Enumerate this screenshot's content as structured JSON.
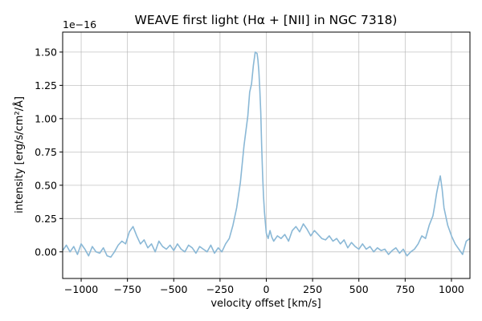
{
  "chart_data": {
    "type": "line",
    "title": "WEAVE first light (Hα + [NII] in NGC 7318)",
    "xlabel": "velocity offset [km/s]",
    "ylabel": "intensity [erg/s/cm²/Å]",
    "y_offset_label": "1e−16",
    "xlim": [
      -1100,
      1100
    ],
    "ylim": [
      -0.2,
      1.65
    ],
    "x_ticks": [
      -1000,
      -750,
      -500,
      -250,
      0,
      250,
      500,
      750,
      1000
    ],
    "x_tick_labels": [
      "−1000",
      "−750",
      "−500",
      "−250",
      "0",
      "250",
      "500",
      "750",
      "1000"
    ],
    "y_ticks": [
      0.0,
      0.25,
      0.5,
      0.75,
      1.0,
      1.25,
      1.5
    ],
    "y_tick_labels": [
      "0.00",
      "0.25",
      "0.50",
      "0.75",
      "1.00",
      "1.25",
      "1.50"
    ],
    "grid": true,
    "series": [
      {
        "color": "#8ab8d6",
        "x": [
          -1100,
          -1080,
          -1060,
          -1040,
          -1020,
          -1000,
          -980,
          -960,
          -940,
          -920,
          -900,
          -880,
          -860,
          -840,
          -820,
          -800,
          -780,
          -760,
          -740,
          -720,
          -700,
          -680,
          -660,
          -640,
          -620,
          -600,
          -580,
          -560,
          -540,
          -520,
          -500,
          -480,
          -460,
          -440,
          -420,
          -400,
          -380,
          -360,
          -340,
          -320,
          -300,
          -280,
          -260,
          -240,
          -220,
          -200,
          -180,
          -160,
          -140,
          -120,
          -100,
          -90,
          -80,
          -70,
          -60,
          -50,
          -45,
          -40,
          -35,
          -30,
          -25,
          -20,
          -15,
          -10,
          -5,
          0,
          10,
          20,
          30,
          40,
          60,
          80,
          100,
          120,
          140,
          160,
          180,
          200,
          220,
          240,
          260,
          280,
          300,
          320,
          340,
          360,
          380,
          400,
          420,
          440,
          460,
          480,
          500,
          520,
          540,
          560,
          580,
          600,
          620,
          640,
          660,
          680,
          700,
          720,
          740,
          760,
          780,
          800,
          820,
          840,
          860,
          880,
          900,
          910,
          920,
          930,
          940,
          950,
          960,
          980,
          1000,
          1020,
          1040,
          1060,
          1080,
          1100
        ],
        "values": [
          0.01,
          0.05,
          0.0,
          0.04,
          -0.02,
          0.06,
          0.02,
          -0.03,
          0.04,
          0.0,
          -0.01,
          0.03,
          -0.03,
          -0.04,
          0.0,
          0.05,
          0.08,
          0.06,
          0.15,
          0.19,
          0.12,
          0.06,
          0.09,
          0.03,
          0.06,
          0.0,
          0.08,
          0.04,
          0.02,
          0.05,
          0.01,
          0.06,
          0.02,
          0.0,
          0.05,
          0.03,
          -0.01,
          0.04,
          0.02,
          0.0,
          0.05,
          -0.01,
          0.03,
          0.0,
          0.06,
          0.1,
          0.2,
          0.33,
          0.52,
          0.8,
          1.02,
          1.2,
          1.26,
          1.4,
          1.5,
          1.49,
          1.44,
          1.35,
          1.22,
          1.05,
          0.8,
          0.58,
          0.42,
          0.3,
          0.22,
          0.14,
          0.1,
          0.16,
          0.11,
          0.08,
          0.12,
          0.1,
          0.13,
          0.08,
          0.16,
          0.19,
          0.15,
          0.21,
          0.17,
          0.12,
          0.16,
          0.13,
          0.1,
          0.09,
          0.12,
          0.08,
          0.1,
          0.06,
          0.09,
          0.03,
          0.07,
          0.04,
          0.02,
          0.06,
          0.02,
          0.04,
          0.0,
          0.03,
          0.01,
          0.02,
          -0.02,
          0.01,
          0.03,
          -0.01,
          0.02,
          -0.03,
          0.0,
          0.02,
          0.06,
          0.12,
          0.1,
          0.2,
          0.27,
          0.35,
          0.44,
          0.51,
          0.57,
          0.47,
          0.33,
          0.2,
          0.12,
          0.06,
          0.02,
          -0.02,
          0.08,
          0.1
        ]
      }
    ]
  }
}
